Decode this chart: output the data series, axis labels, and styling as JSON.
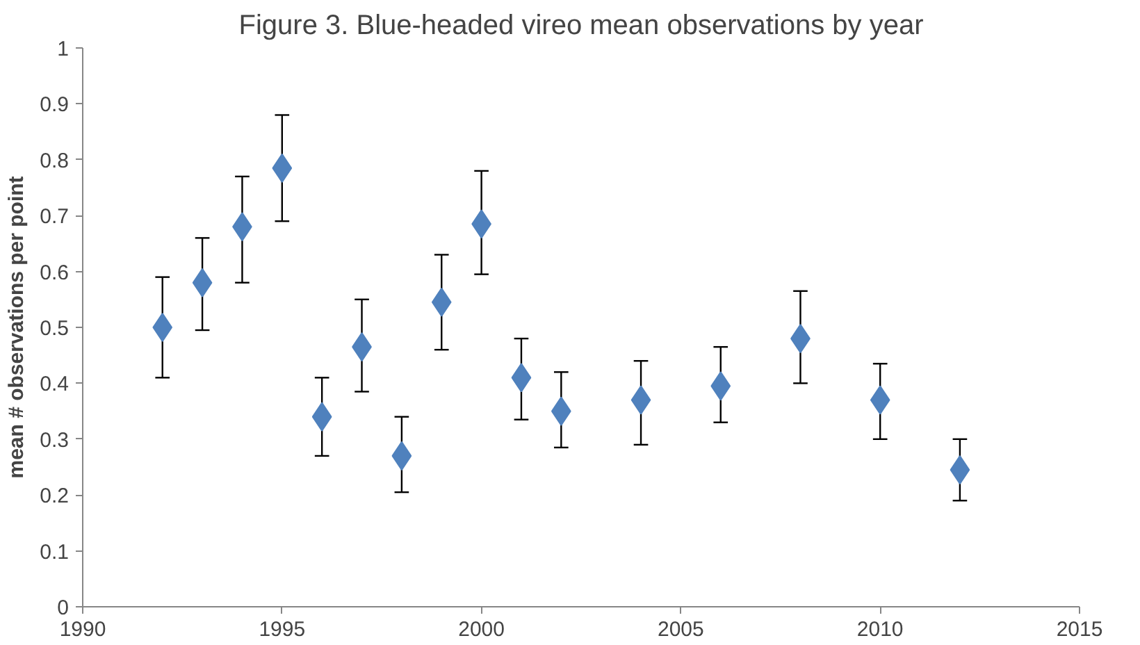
{
  "chart_data": {
    "type": "scatter",
    "title": "Figure 3. Blue-headed vireo mean observations by year",
    "ylabel": "mean # observations per point",
    "x": [
      1992,
      1993,
      1994,
      1995,
      1996,
      1997,
      1998,
      1999,
      2000,
      2001,
      2002,
      2004,
      2006,
      2008,
      2010,
      2012
    ],
    "series": [
      {
        "color": "#4f81bd",
        "values": [
          0.5,
          0.58,
          0.68,
          0.785,
          0.34,
          0.465,
          0.27,
          0.545,
          0.685,
          0.41,
          0.35,
          0.37,
          0.395,
          0.48,
          0.37,
          0.245
        ],
        "errors": [
          [
            0.41,
            0.59
          ],
          [
            0.495,
            0.66
          ],
          [
            0.58,
            0.77
          ],
          [
            0.69,
            0.88
          ],
          [
            0.27,
            0.41
          ],
          [
            0.385,
            0.55
          ],
          [
            0.205,
            0.34
          ],
          [
            0.46,
            0.63
          ],
          [
            0.595,
            0.78
          ],
          [
            0.335,
            0.48
          ],
          [
            0.285,
            0.42
          ],
          [
            0.29,
            0.44
          ],
          [
            0.33,
            0.465
          ],
          [
            0.4,
            0.565
          ],
          [
            0.3,
            0.435
          ],
          [
            0.19,
            0.3
          ]
        ]
      }
    ],
    "xlim": [
      1990,
      2015
    ],
    "xticks": [
      1990,
      1995,
      2000,
      2005,
      2010,
      2015
    ],
    "ylim": [
      0,
      1
    ],
    "yticks": [
      0,
      0.1,
      0.2,
      0.3,
      0.4,
      0.5,
      0.6,
      0.7,
      0.8,
      0.9,
      1
    ],
    "grid": false,
    "marker": "diamond"
  }
}
